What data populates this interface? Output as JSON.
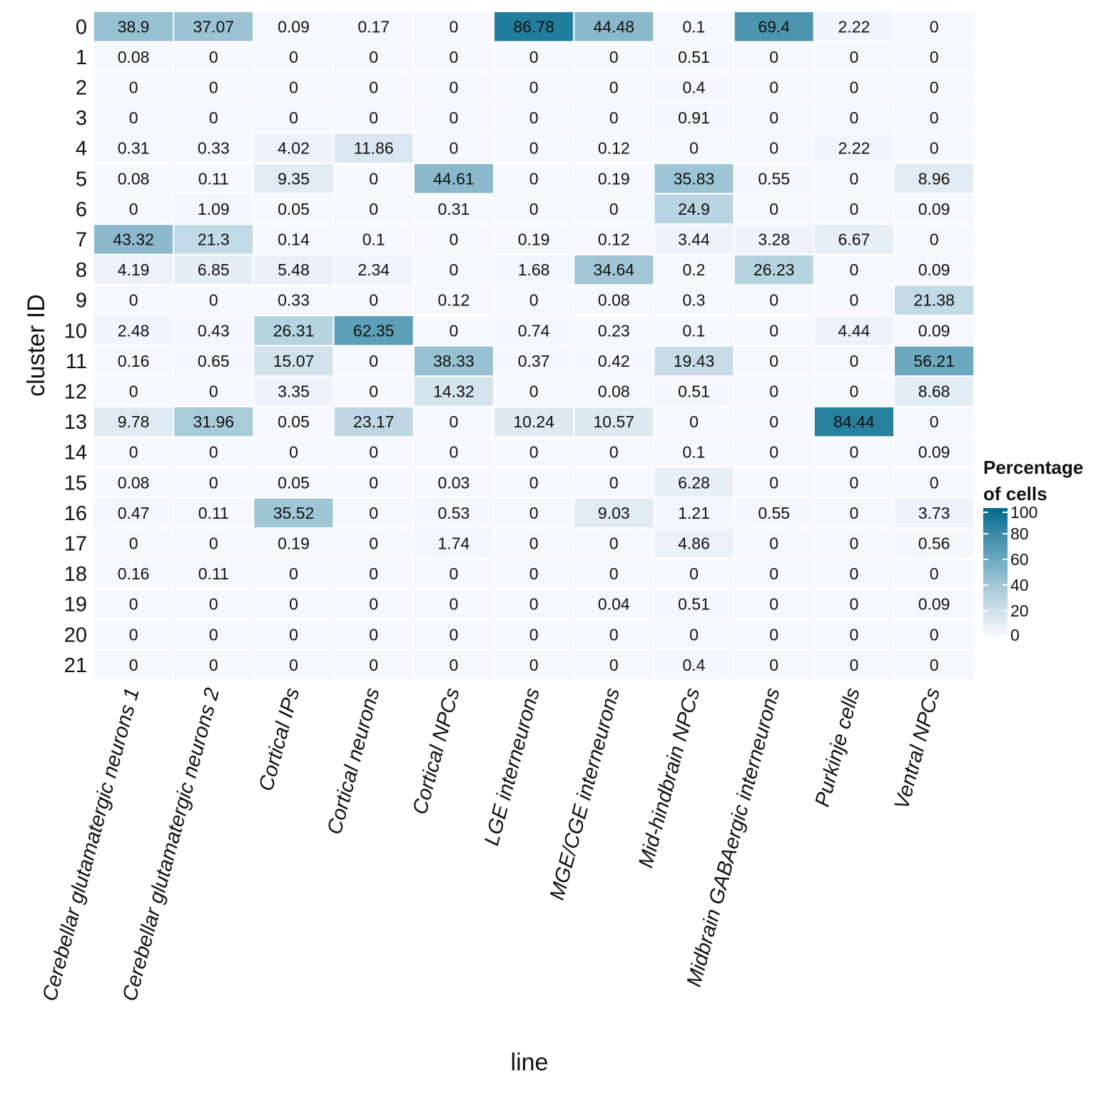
{
  "chart_data": {
    "type": "heatmap",
    "xlabel": "line",
    "ylabel": "cluster ID",
    "columns": [
      "Cerebellar glutamatergic neurons 1",
      "Cerebellar glutamatergic neurons 2",
      "Cortical IPs",
      "Cortical neurons",
      "Cortical NPCs",
      "LGE interneurons",
      "MGE/CGE interneurons",
      "Mid-hindbrain NPCs",
      "Midbrain GABAergic interneurons",
      "Purkinje cells",
      "Ventral NPCs"
    ],
    "rows": [
      "0",
      "1",
      "2",
      "3",
      "4",
      "5",
      "6",
      "7",
      "8",
      "9",
      "10",
      "11",
      "12",
      "13",
      "14",
      "15",
      "16",
      "17",
      "18",
      "19",
      "20",
      "21"
    ],
    "values": [
      [
        "38.9",
        "37.07",
        "0.09",
        "0.17",
        "0",
        "86.78",
        "44.48",
        "0.1",
        "69.4",
        "2.22",
        "0"
      ],
      [
        "0.08",
        "0",
        "0",
        "0",
        "0",
        "0",
        "0",
        "0.51",
        "0",
        "0",
        "0"
      ],
      [
        "0",
        "0",
        "0",
        "0",
        "0",
        "0",
        "0",
        "0.4",
        "0",
        "0",
        "0"
      ],
      [
        "0",
        "0",
        "0",
        "0",
        "0",
        "0",
        "0",
        "0.91",
        "0",
        "0",
        "0"
      ],
      [
        "0.31",
        "0.33",
        "4.02",
        "11.86",
        "0",
        "0",
        "0.12",
        "0",
        "0",
        "2.22",
        "0"
      ],
      [
        "0.08",
        "0.11",
        "9.35",
        "0",
        "44.61",
        "0",
        "0.19",
        "35.83",
        "0.55",
        "0",
        "8.96"
      ],
      [
        "0",
        "1.09",
        "0.05",
        "0",
        "0.31",
        "0",
        "0",
        "24.9",
        "0",
        "0",
        "0.09"
      ],
      [
        "43.32",
        "21.3",
        "0.14",
        "0.1",
        "0",
        "0.19",
        "0.12",
        "3.44",
        "3.28",
        "6.67",
        "0"
      ],
      [
        "4.19",
        "6.85",
        "5.48",
        "2.34",
        "0",
        "1.68",
        "34.64",
        "0.2",
        "26.23",
        "0",
        "0.09"
      ],
      [
        "0",
        "0",
        "0.33",
        "0",
        "0.12",
        "0",
        "0.08",
        "0.3",
        "0",
        "0",
        "21.38"
      ],
      [
        "2.48",
        "0.43",
        "26.31",
        "62.35",
        "0",
        "0.74",
        "0.23",
        "0.1",
        "0",
        "4.44",
        "0.09"
      ],
      [
        "0.16",
        "0.65",
        "15.07",
        "0",
        "38.33",
        "0.37",
        "0.42",
        "19.43",
        "0",
        "0",
        "56.21"
      ],
      [
        "0",
        "0",
        "3.35",
        "0",
        "14.32",
        "0",
        "0.08",
        "0.51",
        "0",
        "0",
        "8.68"
      ],
      [
        "9.78",
        "31.96",
        "0.05",
        "23.17",
        "0",
        "10.24",
        "10.57",
        "0",
        "0",
        "84.44",
        "0"
      ],
      [
        "0",
        "0",
        "0",
        "0",
        "0",
        "0",
        "0",
        "0.1",
        "0",
        "0",
        "0.09"
      ],
      [
        "0.08",
        "0",
        "0.05",
        "0",
        "0.03",
        "0",
        "0",
        "6.28",
        "0",
        "0",
        "0"
      ],
      [
        "0.47",
        "0.11",
        "35.52",
        "0",
        "0.53",
        "0",
        "9.03",
        "1.21",
        "0.55",
        "0",
        "3.73"
      ],
      [
        "0",
        "0",
        "0.19",
        "0",
        "1.74",
        "0",
        "0",
        "4.86",
        "0",
        "0",
        "0.56"
      ],
      [
        "0.16",
        "0.11",
        "0",
        "0",
        "0",
        "0",
        "0",
        "0",
        "0",
        "0",
        "0"
      ],
      [
        "0",
        "0",
        "0",
        "0",
        "0",
        "0",
        "0.04",
        "0.51",
        "0",
        "0",
        "0.09"
      ],
      [
        "0",
        "0",
        "0",
        "0",
        "0",
        "0",
        "0",
        "0",
        "0",
        "0",
        "0"
      ],
      [
        "0",
        "0",
        "0",
        "0",
        "0",
        "0",
        "0",
        "0.4",
        "0",
        "0",
        "0"
      ]
    ],
    "legend": {
      "title_line1": "Percentage",
      "title_line2": "of cells",
      "ticks": [
        "100",
        "80",
        "60",
        "40",
        "20",
        "0"
      ],
      "range": [
        0,
        100
      ],
      "placement": "right"
    },
    "colors": {
      "low": "#f7f8fd",
      "high": "#006a8d",
      "cell_border": "#ffffff"
    }
  }
}
